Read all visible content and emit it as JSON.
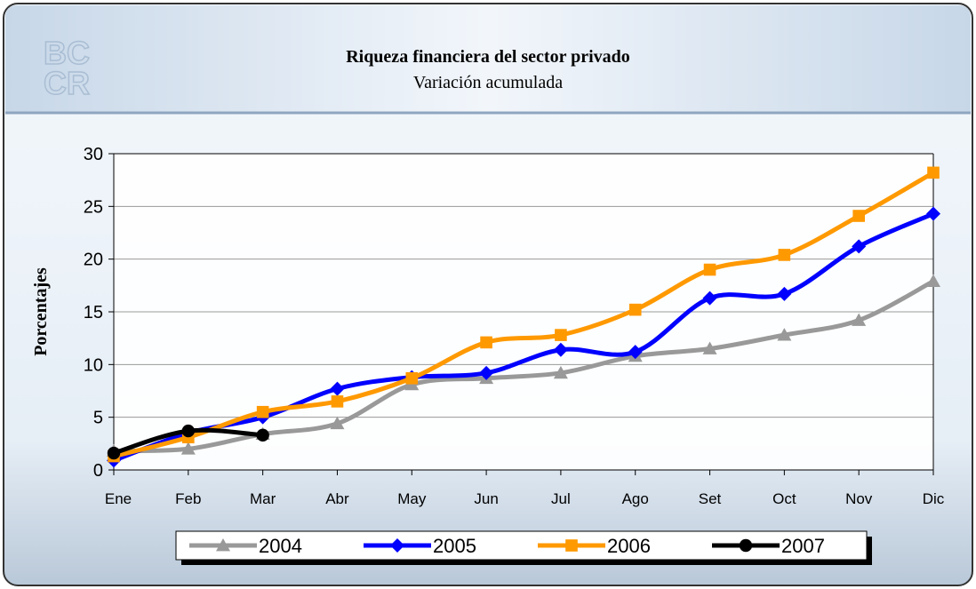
{
  "chart_data": {
    "type": "line",
    "title": "Riqueza financiera del sector privado",
    "subtitle": "Variación acumulada",
    "y_label": "Porcentajes",
    "categories": [
      "Ene",
      "Feb",
      "Mar",
      "Abr",
      "May",
      "Jun",
      "Jul",
      "Ago",
      "Set",
      "Oct",
      "Nov",
      "Dic"
    ],
    "series": [
      {
        "name": "2004",
        "color": "#999999",
        "marker": "triangle",
        "values": [
          1.8,
          2.0,
          3.4,
          4.4,
          8.1,
          8.7,
          9.2,
          10.8,
          11.5,
          12.8,
          14.2,
          17.9
        ]
      },
      {
        "name": "2005",
        "color": "#0000ff",
        "marker": "diamond",
        "values": [
          0.9,
          3.5,
          5.0,
          7.7,
          8.8,
          9.2,
          11.4,
          11.2,
          16.3,
          16.7,
          21.2,
          24.3
        ]
      },
      {
        "name": "2006",
        "color": "#ff9900",
        "marker": "square",
        "values": [
          1.3,
          3.1,
          5.5,
          6.5,
          8.7,
          12.1,
          12.8,
          15.2,
          19.0,
          20.4,
          24.1,
          28.2
        ]
      },
      {
        "name": "2007",
        "color": "#000000",
        "marker": "circle",
        "values": [
          1.6,
          3.7,
          3.3,
          null,
          null,
          null,
          null,
          null,
          null,
          null,
          null,
          null
        ]
      }
    ],
    "ylim": [
      0,
      30
    ],
    "yticks": [
      0,
      5,
      10,
      15,
      20,
      25,
      30
    ],
    "grid": true,
    "legend": "bottom"
  }
}
